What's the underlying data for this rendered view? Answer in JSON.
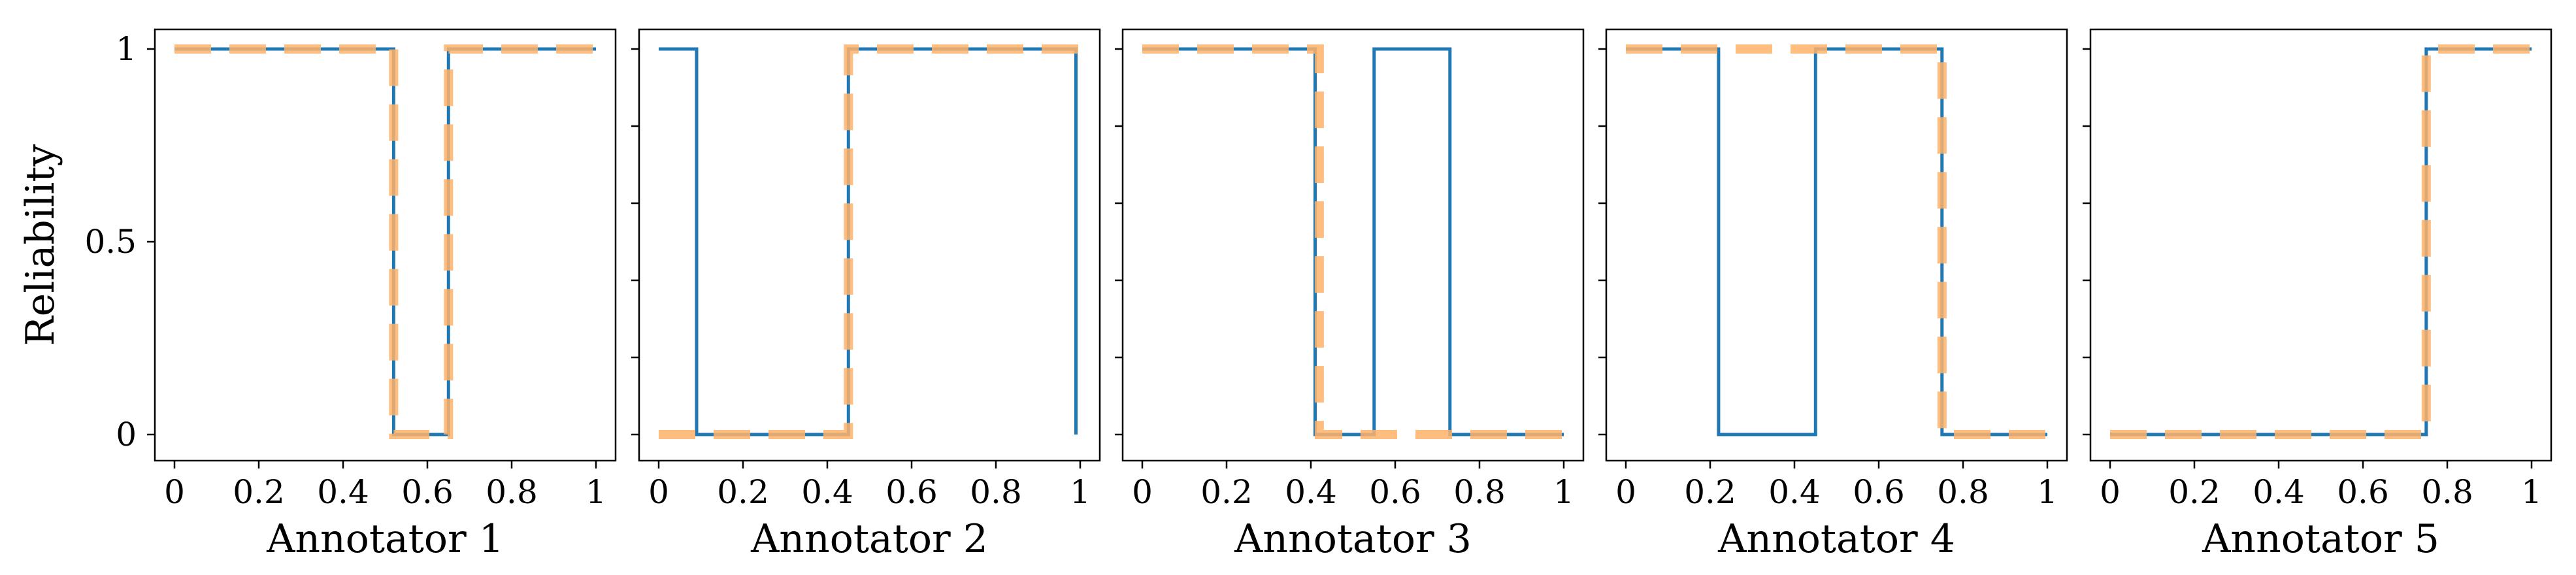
{
  "chart_data": [
    {
      "type": "line",
      "xlabel": "Annotator 1",
      "ylabel": "Reliability",
      "xlim": [
        0,
        1
      ],
      "ylim": [
        0,
        1
      ],
      "xticks": [
        "0",
        "0.2",
        "0.4",
        "0.6",
        "0.8",
        "1"
      ],
      "yticks": [
        "0",
        "0.5",
        "1"
      ],
      "series": [
        {
          "color": "#1f77b4",
          "style": "solid",
          "points": [
            [
              0,
              1
            ],
            [
              0.52,
              1
            ],
            [
              0.52,
              0
            ],
            [
              0.65,
              0
            ],
            [
              0.65,
              1
            ],
            [
              1,
              1
            ]
          ]
        },
        {
          "color": "#ffb16a",
          "style": "dashed",
          "points": [
            [
              0,
              1
            ],
            [
              0.52,
              1
            ],
            [
              0.52,
              0
            ],
            [
              0.65,
              0
            ],
            [
              0.65,
              1
            ],
            [
              1,
              1
            ]
          ]
        }
      ]
    },
    {
      "type": "line",
      "xlabel": "Annotator 2",
      "ylabel": "",
      "xlim": [
        0,
        1
      ],
      "ylim": [
        0,
        1
      ],
      "xticks": [
        "0",
        "0.2",
        "0.4",
        "0.6",
        "0.8",
        "1"
      ],
      "yticks": [],
      "series": [
        {
          "color": "#1f77b4",
          "style": "solid",
          "points": [
            [
              0,
              1
            ],
            [
              0.09,
              1
            ],
            [
              0.09,
              0
            ],
            [
              0.45,
              0
            ],
            [
              0.45,
              1
            ],
            [
              0.99,
              1
            ],
            [
              0.99,
              0
            ]
          ]
        },
        {
          "color": "#ffb16a",
          "style": "dashed",
          "points": [
            [
              0,
              0
            ],
            [
              0.45,
              0
            ],
            [
              0.45,
              1
            ],
            [
              1,
              1
            ]
          ]
        }
      ]
    },
    {
      "type": "line",
      "xlabel": "Annotator 3",
      "ylabel": "",
      "xlim": [
        0,
        1
      ],
      "ylim": [
        0,
        1
      ],
      "xticks": [
        "0",
        "0.2",
        "0.4",
        "0.6",
        "0.8",
        "1"
      ],
      "yticks": [],
      "series": [
        {
          "color": "#1f77b4",
          "style": "solid",
          "points": [
            [
              0,
              1
            ],
            [
              0.41,
              1
            ],
            [
              0.41,
              0
            ],
            [
              0.55,
              0
            ],
            [
              0.55,
              1
            ],
            [
              0.73,
              1
            ],
            [
              0.73,
              0
            ],
            [
              1,
              0
            ]
          ]
        },
        {
          "color": "#ffb16a",
          "style": "dashed",
          "points": [
            [
              0,
              1
            ],
            [
              0.42,
              1
            ],
            [
              0.42,
              0
            ],
            [
              1,
              0
            ]
          ]
        }
      ]
    },
    {
      "type": "line",
      "xlabel": "Annotator 4",
      "ylabel": "",
      "xlim": [
        0,
        1
      ],
      "ylim": [
        0,
        1
      ],
      "xticks": [
        "0",
        "0.2",
        "0.4",
        "0.6",
        "0.8",
        "1"
      ],
      "yticks": [],
      "series": [
        {
          "color": "#1f77b4",
          "style": "solid",
          "points": [
            [
              0,
              1
            ],
            [
              0.22,
              1
            ],
            [
              0.22,
              0
            ],
            [
              0.45,
              0
            ],
            [
              0.45,
              1
            ],
            [
              0.75,
              1
            ],
            [
              0.75,
              0
            ],
            [
              1,
              0
            ]
          ]
        },
        {
          "color": "#ffb16a",
          "style": "dashed",
          "points": [
            [
              0,
              1
            ],
            [
              0.75,
              1
            ],
            [
              0.75,
              0
            ],
            [
              1,
              0
            ]
          ]
        }
      ]
    },
    {
      "type": "line",
      "xlabel": "Annotator 5",
      "ylabel": "",
      "xlim": [
        0,
        1
      ],
      "ylim": [
        0,
        1
      ],
      "xticks": [
        "0",
        "0.2",
        "0.4",
        "0.6",
        "0.8",
        "1"
      ],
      "yticks": [],
      "series": [
        {
          "color": "#1f77b4",
          "style": "solid",
          "points": [
            [
              0,
              0
            ],
            [
              0.75,
              0
            ],
            [
              0.75,
              1
            ],
            [
              1,
              1
            ]
          ]
        },
        {
          "color": "#ffb16a",
          "style": "dashed",
          "points": [
            [
              0,
              0
            ],
            [
              0.75,
              0
            ],
            [
              0.75,
              1
            ],
            [
              1,
              1
            ]
          ]
        }
      ]
    }
  ]
}
